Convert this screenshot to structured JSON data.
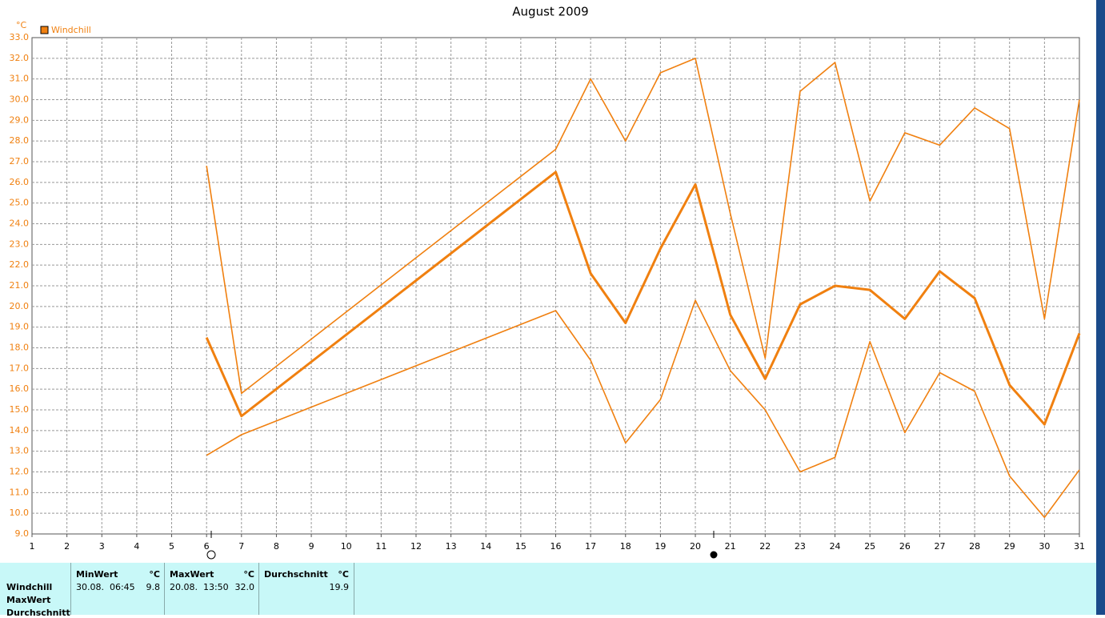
{
  "chart_data": {
    "type": "line",
    "title": "August 2009",
    "y_unit": "°C",
    "legend": "Windchill",
    "color": "#f08010",
    "grid": true,
    "x": [
      6,
      7,
      16,
      17,
      18,
      19,
      20,
      21,
      22,
      23,
      24,
      25,
      26,
      27,
      28,
      29,
      30,
      31
    ],
    "series": [
      {
        "values": [
          26.8,
          15.8,
          27.6,
          31.0,
          28.0,
          31.3,
          32.0,
          24.5,
          17.5,
          30.4,
          31.8,
          25.1,
          28.4,
          27.8,
          29.6,
          28.6,
          19.4,
          30.0
        ]
      },
      {
        "values": [
          18.5,
          14.7,
          26.5,
          21.6,
          19.2,
          22.8,
          25.9,
          19.6,
          16.5,
          20.1,
          21.0,
          20.8,
          19.4,
          21.7,
          20.4,
          16.2,
          14.3,
          18.7
        ]
      },
      {
        "values": [
          12.8,
          13.8,
          19.8,
          17.4,
          13.4,
          15.5,
          20.3,
          16.9,
          15.0,
          12.0,
          12.7,
          18.3,
          13.9,
          16.8,
          15.9,
          11.8,
          9.8,
          12.1
        ]
      }
    ],
    "xlim": [
      1,
      31
    ],
    "xticks": [
      1,
      2,
      3,
      4,
      5,
      6,
      7,
      8,
      9,
      10,
      11,
      12,
      13,
      14,
      15,
      16,
      17,
      18,
      19,
      20,
      21,
      22,
      23,
      24,
      25,
      26,
      27,
      28,
      29,
      30,
      31
    ],
    "ylim": [
      9,
      33
    ],
    "yticks": [
      {
        "value": 9,
        "label": "9.0"
      },
      {
        "value": 10,
        "label": "10.0"
      },
      {
        "value": 11,
        "label": "11.0"
      },
      {
        "value": 12,
        "label": "12.0"
      },
      {
        "value": 13,
        "label": "13.0"
      },
      {
        "value": 14,
        "label": "14.0"
      },
      {
        "value": 15,
        "label": "15.0"
      },
      {
        "value": 16,
        "label": "16.0"
      },
      {
        "value": 17,
        "label": "17.0"
      },
      {
        "value": 18,
        "label": "18.0"
      },
      {
        "value": 19,
        "label": "19.0"
      },
      {
        "value": 20,
        "label": "20.0"
      },
      {
        "value": 21,
        "label": "21.0"
      },
      {
        "value": 22,
        "label": "22.0"
      },
      {
        "value": 23,
        "label": "23.0"
      },
      {
        "value": 24,
        "label": "24.0"
      },
      {
        "value": 25,
        "label": "25.0"
      },
      {
        "value": 26,
        "label": "26.0"
      },
      {
        "value": 27,
        "label": "27.0"
      },
      {
        "value": 28,
        "label": "28.0"
      },
      {
        "value": 29,
        "label": "29.0"
      },
      {
        "value": 30,
        "label": "30.0"
      },
      {
        "value": 31,
        "label": "31.0"
      },
      {
        "value": 32,
        "label": "32.0"
      },
      {
        "value": 33,
        "label": "33.0"
      }
    ]
  },
  "table": {
    "row_labels": [
      "Windchill",
      "MaxWert",
      "Durchschnitt"
    ],
    "columns": [
      {
        "header": "MinWert",
        "unit": "°C",
        "time": "30.08.  06:45",
        "value": "9.8"
      },
      {
        "header": "MaxWert",
        "unit": "°C",
        "time": "20.08.  13:50",
        "value": "32.0"
      },
      {
        "header": "Durchschnitt",
        "unit": "°C",
        "value": "19.9"
      }
    ]
  }
}
